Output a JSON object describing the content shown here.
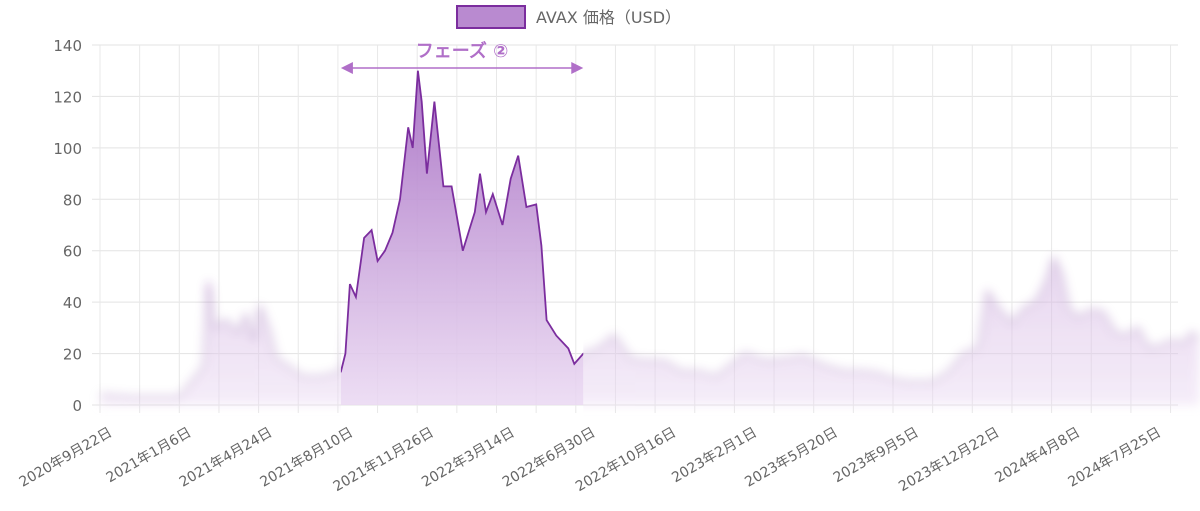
{
  "chart_data": {
    "type": "area",
    "legend": {
      "label": "AVAX 価格（USD）",
      "position": "top",
      "color": "#7b2d9e",
      "fill": "#b98ad0"
    },
    "y_ticks": [
      "0",
      "20",
      "40",
      "60",
      "80",
      "100",
      "120",
      "140"
    ],
    "ylim": [
      0,
      140
    ],
    "x_labels": [
      "2020年9月22日",
      "2021年1月6日",
      "2021年4月24日",
      "2021年8月10日",
      "2021年11月26日",
      "2022年3月14日",
      "2022年6月30日",
      "2022年10月16日",
      "2023年2月1日",
      "2023年5月20日",
      "2023年9月5日",
      "2023年12月22日",
      "2024年4月8日",
      "2024年7月25日"
    ],
    "grid": true,
    "highlight": {
      "label": "フェーズ ②",
      "start": "2021年8月10日",
      "end": "2022年6月30日",
      "color": "#b06fc8"
    },
    "series": [
      {
        "name": "AVAX 価格（USD）",
        "points": [
          [
            "2020年9月22日",
            4
          ],
          [
            "2020年11月1日",
            3
          ],
          [
            "2020年12月15日",
            3
          ],
          [
            "2021年1月6日",
            3
          ],
          [
            "2021年1月25日",
            10
          ],
          [
            "2021年2月8日",
            15
          ],
          [
            "2021年2月14日",
            48
          ],
          [
            "2021年2月22日",
            30
          ],
          [
            "2021年3月10日",
            33
          ],
          [
            "2021年3月25日",
            28
          ],
          [
            "2021年4月5日",
            35
          ],
          [
            "2021年4月15日",
            25
          ],
          [
            "2021年4月24日",
            38
          ],
          [
            "2021年5月5日",
            30
          ],
          [
            "2021年5月15日",
            18
          ],
          [
            "2021年6月1日",
            15
          ],
          [
            "2021年6月20日",
            11
          ],
          [
            "2021年7月15日",
            11
          ],
          [
            "2021年8月10日",
            13
          ],
          [
            "2021年8月16日",
            20
          ],
          [
            "2021年8月22日",
            47
          ],
          [
            "2021年8月30日",
            42
          ],
          [
            "2021年9月10日",
            65
          ],
          [
            "2021年9月20日",
            68
          ],
          [
            "2021年9月28日",
            56
          ],
          [
            "2021年10月8日",
            60
          ],
          [
            "2021年10月18日",
            67
          ],
          [
            "2021年10月28日",
            80
          ],
          [
            "2021年11月8日",
            108
          ],
          [
            "2021年11月14日",
            100
          ],
          [
            "2021年11月21日",
            130
          ],
          [
            "2021年11月26日",
            118
          ],
          [
            "2021年12月3日",
            90
          ],
          [
            "2021年12月13日",
            118
          ],
          [
            "2021年12月25日",
            85
          ],
          [
            "2022年1月5日",
            85
          ],
          [
            "2022年1月20日",
            60
          ],
          [
            "2022年2月5日",
            75
          ],
          [
            "2022年2月12日",
            90
          ],
          [
            "2022年2月20日",
            75
          ],
          [
            "2022年3月1日",
            82
          ],
          [
            "2022年3月14日",
            70
          ],
          [
            "2022年3月25日",
            88
          ],
          [
            "2022年4月4日",
            97
          ],
          [
            "2022年4月15日",
            77
          ],
          [
            "2022年4月28日",
            78
          ],
          [
            "2022年5月5日",
            62
          ],
          [
            "2022年5月12日",
            33
          ],
          [
            "2022年5月25日",
            27
          ],
          [
            "2022年6月10日",
            22
          ],
          [
            "2022年6月18日",
            16
          ],
          [
            "2022年6月30日",
            20
          ],
          [
            "2022年7月20日",
            22
          ],
          [
            "2022年8月10日",
            27
          ],
          [
            "2022年9月1日",
            18
          ],
          [
            "2022年9月25日",
            17
          ],
          [
            "2022年10月16日",
            17
          ],
          [
            "2022年11月8日",
            13
          ],
          [
            "2022年12月1日",
            13
          ],
          [
            "2022年12月25日",
            11
          ],
          [
            "2023年1月15日",
            16
          ],
          [
            "2023年2月1日",
            20
          ],
          [
            "2023年3月1日",
            17
          ],
          [
            "2023年4月1日",
            18
          ],
          [
            "2023年4月20日",
            19
          ],
          [
            "2023年5月20日",
            15
          ],
          [
            "2023年6月15日",
            13
          ],
          [
            "2023年7月10日",
            13
          ],
          [
            "2023年8月1日",
            12
          ],
          [
            "2023年8月20日",
            10
          ],
          [
            "2023年9月5日",
            9
          ],
          [
            "2023年10月10日",
            9
          ],
          [
            "2023年11月1日",
            13
          ],
          [
            "2023年11月20日",
            20
          ],
          [
            "2023年12月10日",
            22
          ],
          [
            "2023年12月22日",
            44
          ],
          [
            "2024年1月10日",
            36
          ],
          [
            "2024年1月25日",
            32
          ],
          [
            "2024年2月10日",
            38
          ],
          [
            "2024年2月25日",
            40
          ],
          [
            "2024年3月10日",
            48
          ],
          [
            "2024年3月20日",
            57
          ],
          [
            "2024年3月30日",
            51
          ],
          [
            "2024年4月8日",
            38
          ],
          [
            "2024年4月20日",
            34
          ],
          [
            "2024年5月10日",
            37
          ],
          [
            "2024年5月25日",
            36
          ],
          [
            "2024年6月10日",
            28
          ],
          [
            "2024年6月25日",
            27
          ],
          [
            "2024年7月10日",
            30
          ],
          [
            "2024年7月25日",
            22
          ],
          [
            "2024年8月10日",
            23
          ],
          [
            "2024年8月25日",
            25
          ],
          [
            "2024年9月10日",
            24
          ],
          [
            "2024年9月20日",
            28
          ],
          [
            "2024年9月30日",
            26
          ]
        ]
      }
    ]
  }
}
